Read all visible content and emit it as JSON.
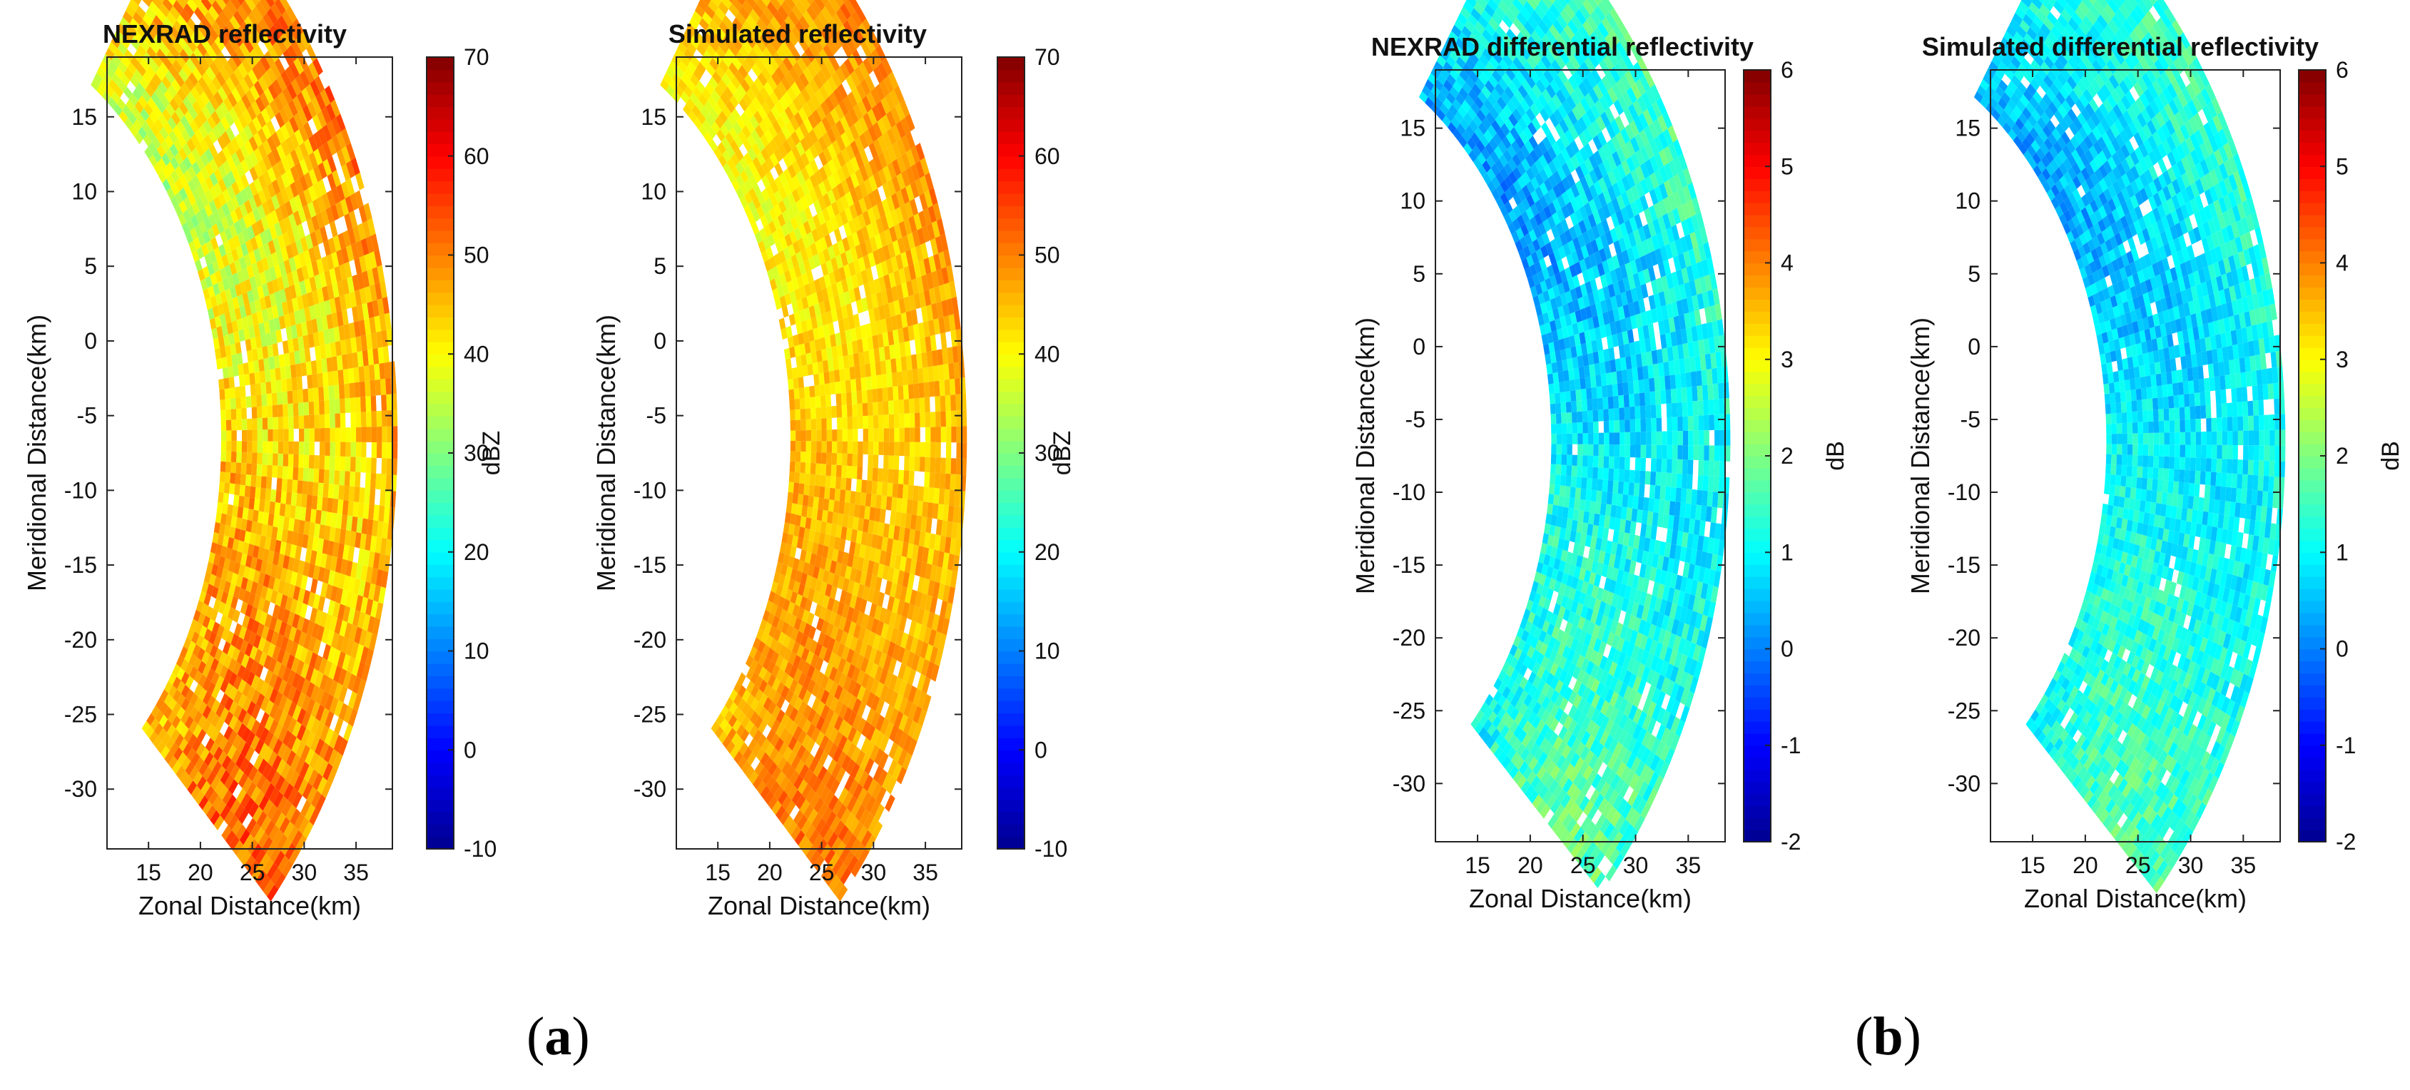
{
  "figure": {
    "panel_labels": [
      {
        "open": "(",
        "letter": "a",
        "close": ")"
      },
      {
        "open": "(",
        "letter": "b",
        "close": ")"
      }
    ]
  },
  "chart_data": [
    {
      "type": "heatmap",
      "title": "NEXRAD reflectivity",
      "xlabel": "Zonal Distance(km)",
      "ylabel": "Meridional Distance(km)",
      "xlim": [
        11,
        38.5
      ],
      "ylim": [
        -34,
        19
      ],
      "xticks": [
        15,
        20,
        25,
        30,
        35
      ],
      "yticks": [
        15,
        10,
        5,
        0,
        -5,
        -10,
        -15,
        -20,
        -25,
        -30
      ],
      "colorbar": {
        "label": "dBZ",
        "range": [
          -10,
          70
        ],
        "ticks": [
          70,
          60,
          50,
          40,
          30,
          20,
          10,
          0,
          -10
        ]
      },
      "colormap": [
        "#00008f",
        "#0000ff",
        "#0080ff",
        "#00ffff",
        "#80ff80",
        "#ffff00",
        "#ff8000",
        "#ff0000",
        "#800000"
      ],
      "field": {
        "mean": 44,
        "spread": 9
      }
    },
    {
      "type": "heatmap",
      "title": "Simulated reflectivity",
      "xlabel": "Zonal Distance(km)",
      "ylabel": "Meridional Distance(km)",
      "xlim": [
        11,
        38.5
      ],
      "ylim": [
        -34,
        19
      ],
      "xticks": [
        15,
        20,
        25,
        30,
        35
      ],
      "yticks": [
        15,
        10,
        5,
        0,
        -5,
        -10,
        -15,
        -20,
        -25,
        -30
      ],
      "colorbar": {
        "label": "dBZ",
        "range": [
          -10,
          70
        ],
        "ticks": [
          70,
          60,
          50,
          40,
          30,
          20,
          10,
          0,
          -10
        ]
      },
      "colormap": [
        "#00008f",
        "#0000ff",
        "#0080ff",
        "#00ffff",
        "#80ff80",
        "#ffff00",
        "#ff8000",
        "#ff0000",
        "#800000"
      ],
      "field": {
        "mean": 45,
        "spread": 6
      }
    },
    {
      "type": "heatmap",
      "title": "NEXRAD differential reflectivity",
      "xlabel": "Zonal Distance(km)",
      "ylabel": "Meridional Distance(km)",
      "xlim": [
        11,
        38.5
      ],
      "ylim": [
        -34,
        19
      ],
      "xticks": [
        15,
        20,
        25,
        30,
        35
      ],
      "yticks": [
        15,
        10,
        5,
        0,
        -5,
        -10,
        -15,
        -20,
        -25,
        -30
      ],
      "colorbar": {
        "label": "dB",
        "range": [
          -2,
          6
        ],
        "ticks": [
          6,
          5,
          4,
          3,
          2,
          1,
          0,
          -1,
          -2
        ]
      },
      "colormap": [
        "#00008f",
        "#0000ff",
        "#0080ff",
        "#00ffff",
        "#80ff80",
        "#ffff00",
        "#ff8000",
        "#ff0000",
        "#800000"
      ],
      "field": {
        "mean": 1.0,
        "spread": 0.8
      }
    },
    {
      "type": "heatmap",
      "title": "Simulated differential reflectivity",
      "xlabel": "Zonal Distance(km)",
      "ylabel": "Meridional Distance(km)",
      "xlim": [
        11,
        38.5
      ],
      "ylim": [
        -34,
        19
      ],
      "xticks": [
        15,
        20,
        25,
        30,
        35
      ],
      "yticks": [
        15,
        10,
        5,
        0,
        -5,
        -10,
        -15,
        -20,
        -25,
        -30
      ],
      "colorbar": {
        "label": "dB",
        "range": [
          -2,
          6
        ],
        "ticks": [
          6,
          5,
          4,
          3,
          2,
          1,
          0,
          -1,
          -2
        ]
      },
      "colormap": [
        "#00008f",
        "#0000ff",
        "#0080ff",
        "#00ffff",
        "#80ff80",
        "#ffff00",
        "#ff8000",
        "#ff0000",
        "#800000"
      ],
      "field": {
        "mean": 1.0,
        "spread": 0.7
      }
    }
  ]
}
